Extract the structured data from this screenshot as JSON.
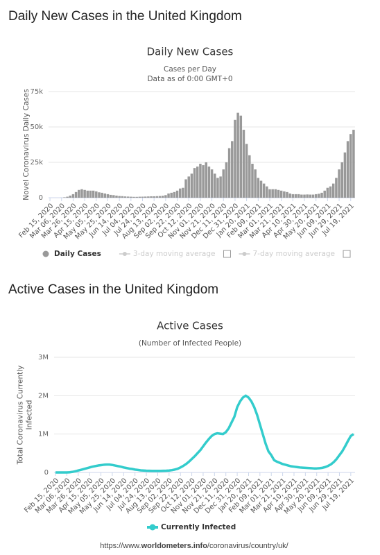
{
  "chart_data": [
    {
      "type": "bar",
      "heading": "Daily New Cases in the United Kingdom",
      "title": "Daily New Cases",
      "subtitle": [
        "Cases per Day",
        "Data as of 0:00 GMT+0"
      ],
      "ylabel": [
        "Novel Coronavirus Daily Cases"
      ],
      "categories": [
        "Feb 15, 2020",
        null,
        null,
        null,
        "Mar 06, 2020",
        null,
        null,
        null,
        "Mar 26, 2020",
        null,
        null,
        null,
        "Apr 15, 2020",
        null,
        null,
        null,
        "May 05, 2020",
        null,
        null,
        null,
        "May 25, 2020",
        null,
        null,
        null,
        "Jun 14, 2020",
        null,
        null,
        null,
        "Jul 04, 2020",
        null,
        null,
        null,
        "Jul 24, 2020",
        null,
        null,
        null,
        "Aug 13, 2020",
        null,
        null,
        null,
        "Sep 02, 2020",
        null,
        null,
        null,
        "Sep 22, 2020",
        null,
        null,
        null,
        "Oct 12, 2020",
        null,
        null,
        null,
        "Nov 01, 2020",
        null,
        null,
        null,
        "Nov 21, 2020",
        null,
        null,
        null,
        "Dec 11, 2020",
        null,
        null,
        null,
        "Dec 31, 2020",
        null,
        null,
        null,
        "Jan 20, 2021",
        null,
        null,
        null,
        "Feb 09, 2021",
        null,
        null,
        null,
        "Mar 01, 2021",
        null,
        null,
        null,
        "Mar 21, 2021",
        null,
        null,
        null,
        "Apr 10, 2021",
        null,
        null,
        null,
        "Apr 30, 2021",
        null,
        null,
        null,
        "May 20, 2021",
        null,
        null,
        null,
        "Jun 09, 2021",
        null,
        null,
        null,
        "Jun 29, 2021",
        null,
        null,
        null,
        "Jul 19, 2021",
        null
      ],
      "series": [
        {
          "name": "Daily Cases",
          "color": "#999999",
          "values": [
            0,
            0,
            0,
            0,
            50,
            300,
            700,
            1500,
            2500,
            4000,
            5500,
            6000,
            5500,
            5000,
            5000,
            5000,
            4500,
            3800,
            3500,
            3000,
            2500,
            2000,
            1800,
            1500,
            1200,
            1100,
            900,
            800,
            700,
            600,
            600,
            700,
            750,
            800,
            900,
            1000,
            1000,
            1100,
            1200,
            1400,
            1800,
            3000,
            3500,
            4000,
            5000,
            6500,
            7000,
            13000,
            15000,
            17000,
            21000,
            22000,
            24000,
            23000,
            25000,
            22000,
            20000,
            17000,
            14000,
            15000,
            20000,
            25000,
            35000,
            40000,
            55000,
            60000,
            58000,
            48000,
            38000,
            30000,
            24000,
            20000,
            14000,
            12000,
            10000,
            8000,
            6000,
            6000,
            6000,
            5500,
            5000,
            4500,
            4000,
            3000,
            2500,
            2500,
            2500,
            2200,
            2200,
            2300,
            2200,
            2200,
            2500,
            2800,
            3500,
            5000,
            7000,
            8000,
            10000,
            14000,
            20000,
            25000,
            32000,
            40000,
            45000,
            48000
          ]
        }
      ],
      "disabled_series": [
        "3-day moving average",
        "7-day moving average"
      ],
      "ylim": [
        0,
        75000
      ],
      "yticks": [
        0,
        {
          "value": 25000,
          "label": "25k"
        },
        {
          "value": 50000,
          "label": "50k"
        },
        {
          "value": 75000,
          "label": "75k"
        }
      ],
      "grid": true
    },
    {
      "type": "line",
      "heading": "Active Cases in the United Kingdom",
      "title": "Active Cases",
      "subtitle": [
        "(Number of Infected People)"
      ],
      "ylabel": [
        "Total Coronavirus Currently",
        "Infected"
      ],
      "categories": [
        "Feb 15, 2020",
        null,
        null,
        null,
        "Mar 06, 2020",
        null,
        null,
        null,
        "Mar 26, 2020",
        null,
        null,
        null,
        "Apr 15, 2020",
        null,
        null,
        null,
        "May 05, 2020",
        null,
        null,
        null,
        "May 25, 2020",
        null,
        null,
        null,
        "Jun 14, 2020",
        null,
        null,
        null,
        "Jul 04, 2020",
        null,
        null,
        null,
        "Jul 24, 2020",
        null,
        null,
        null,
        "Aug 13, 2020",
        null,
        null,
        null,
        "Sep 02, 2020",
        null,
        null,
        null,
        "Sep 22, 2020",
        null,
        null,
        null,
        "Oct 12, 2020",
        null,
        null,
        null,
        "Nov 01, 2020",
        null,
        null,
        null,
        "Nov 21, 2020",
        null,
        null,
        null,
        "Dec 11, 2020",
        null,
        null,
        null,
        "Dec 31, 2020",
        null,
        null,
        null,
        "Jan 20, 2021",
        null,
        null,
        null,
        "Feb 09, 2021",
        null,
        null,
        null,
        "Mar 01, 2021",
        null,
        null,
        null,
        "Mar 21, 2021",
        null,
        null,
        null,
        "Apr 10, 2021",
        null,
        null,
        null,
        "Apr 30, 2021",
        null,
        null,
        null,
        "May 20, 2021",
        null,
        null,
        null,
        "Jun 09, 2021",
        null,
        null,
        null,
        "Jun 29, 2021",
        null,
        null,
        null,
        "Jul 19, 2021",
        null
      ],
      "series": [
        {
          "name": "Currently Infected",
          "color": "#33cccc",
          "values": [
            0,
            0,
            0,
            0,
            0,
            5000,
            15000,
            30000,
            50000,
            70000,
            90000,
            110000,
            130000,
            150000,
            165000,
            180000,
            190000,
            200000,
            205000,
            205000,
            195000,
            180000,
            165000,
            150000,
            130000,
            115000,
            100000,
            90000,
            75000,
            65000,
            55000,
            50000,
            45000,
            42000,
            40000,
            40000,
            40000,
            40000,
            42000,
            45000,
            50000,
            60000,
            75000,
            95000,
            130000,
            170000,
            220000,
            280000,
            350000,
            420000,
            500000,
            580000,
            680000,
            780000,
            870000,
            950000,
            1000000,
            1020000,
            1010000,
            1000000,
            1050000,
            1150000,
            1300000,
            1450000,
            1700000,
            1850000,
            1950000,
            2000000,
            1950000,
            1850000,
            1700000,
            1500000,
            1250000,
            1000000,
            750000,
            550000,
            450000,
            320000,
            280000,
            250000,
            220000,
            200000,
            180000,
            160000,
            150000,
            140000,
            130000,
            125000,
            120000,
            115000,
            110000,
            105000,
            105000,
            110000,
            120000,
            140000,
            170000,
            210000,
            270000,
            350000,
            450000,
            550000,
            680000,
            820000,
            950000,
            1000000
          ]
        }
      ],
      "ylim": [
        0,
        3000000
      ],
      "yticks": [
        0,
        {
          "value": 1000000,
          "label": "1M"
        },
        {
          "value": 2000000,
          "label": "2M"
        },
        {
          "value": 3000000,
          "label": "3M"
        }
      ],
      "grid": true
    }
  ],
  "footer": [
    "https://www.",
    "worldometers.info",
    "/coronavirus/country/uk/"
  ]
}
